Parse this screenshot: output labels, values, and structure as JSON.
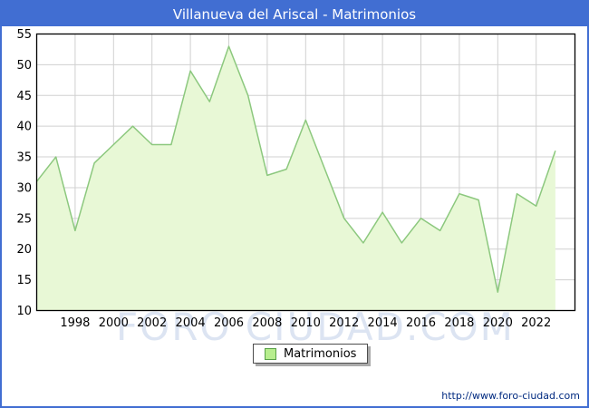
{
  "window": {
    "title": "Villanueva del Ariscal - Matrimonios"
  },
  "legend": {
    "label": "Matrimonios"
  },
  "watermark": {
    "text": "FORO CIUDAD.COM"
  },
  "footer": {
    "url": "http://www.foro-ciudad.com"
  },
  "colors": {
    "frame_blue": "#416ed2",
    "title_fg": "#ffffff",
    "plot_bg": "#ffffff",
    "plot_border": "#000000",
    "grid": "#d0d0d0",
    "area_fill": "#e8f8d6",
    "line_green": "#8cc87e",
    "tick_label": "#000000",
    "legend_swatch_fill": "#b7ee8e",
    "legend_swatch_border": "#57a046",
    "watermark": "#dce4f2",
    "footer_link": "#002a80"
  },
  "chart_data": {
    "type": "area",
    "title": "Villanueva del Ariscal - Matrimonios",
    "xlabel": "",
    "ylabel": "",
    "x": [
      1996,
      1997,
      1998,
      1999,
      2000,
      2001,
      2002,
      2003,
      2004,
      2005,
      2006,
      2007,
      2008,
      2009,
      2010,
      2011,
      2012,
      2013,
      2014,
      2015,
      2016,
      2017,
      2018,
      2019,
      2020,
      2021,
      2022,
      2023
    ],
    "series": [
      {
        "name": "Matrimonios",
        "values": [
          31,
          35,
          23,
          34,
          37,
          40,
          37,
          37,
          49,
          44,
          53,
          45,
          32,
          33,
          41,
          33,
          25,
          21,
          26,
          21,
          25,
          23,
          29,
          28,
          13,
          29,
          27,
          36
        ]
      }
    ],
    "ylim": [
      10,
      55
    ],
    "ytick_step": 5,
    "yticks": [
      10,
      15,
      20,
      25,
      30,
      35,
      40,
      45,
      50,
      55
    ],
    "xticks": [
      1998,
      2000,
      2002,
      2004,
      2006,
      2008,
      2010,
      2012,
      2014,
      2016,
      2018,
      2020,
      2022
    ],
    "grid": true,
    "legend_position": "bottom-center"
  }
}
